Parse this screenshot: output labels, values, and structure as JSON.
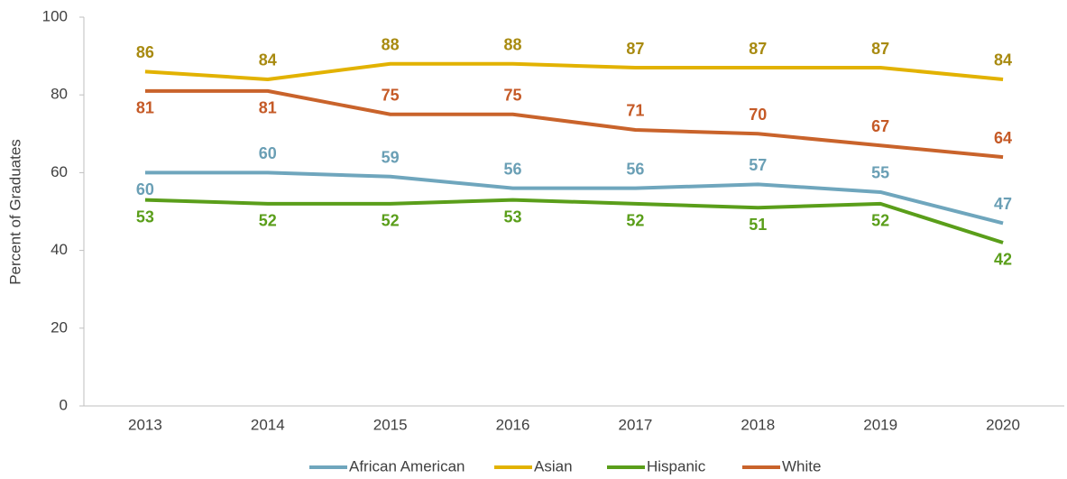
{
  "chart_data": {
    "type": "line",
    "ylabel": "Percent of Graduates",
    "categories": [
      "2013",
      "2014",
      "2015",
      "2016",
      "2017",
      "2018",
      "2019",
      "2020"
    ],
    "series": [
      {
        "name": "African American",
        "color": "#6fa6bd",
        "values": [
          60,
          60,
          59,
          56,
          56,
          57,
          55,
          47
        ]
      },
      {
        "name": "Asian",
        "color": "#e2b200",
        "values": [
          86,
          84,
          88,
          88,
          87,
          87,
          87,
          84
        ]
      },
      {
        "name": "Hispanic",
        "color": "#5a9e1a",
        "values": [
          53,
          52,
          52,
          53,
          52,
          51,
          52,
          42
        ]
      },
      {
        "name": "White",
        "color": "#c9632b",
        "values": [
          81,
          81,
          75,
          75,
          71,
          70,
          67,
          64
        ]
      }
    ],
    "ylim": [
      0,
      100
    ],
    "yticks": [
      0,
      20,
      40,
      60,
      80,
      100
    ],
    "grid": false,
    "legend": "bottom"
  }
}
